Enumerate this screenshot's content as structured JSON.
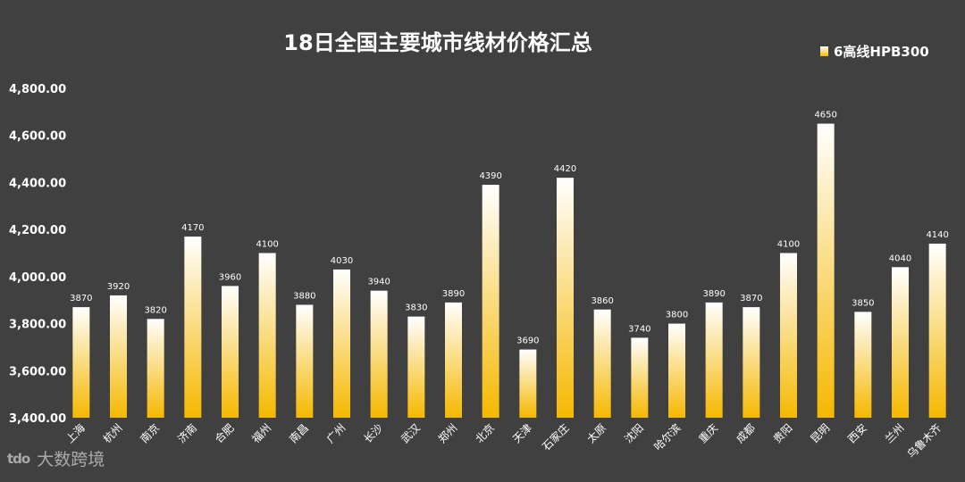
{
  "chart_data": {
    "type": "bar",
    "title": "18日全国主要城市线材价格汇总",
    "categories": [
      "上海",
      "杭州",
      "南京",
      "济南",
      "合肥",
      "福州",
      "南昌",
      "广州",
      "长沙",
      "武汉",
      "郑州",
      "北京",
      "天津",
      "石家庄",
      "太原",
      "沈阳",
      "哈尔滨",
      "重庆",
      "成都",
      "贵阳",
      "昆明",
      "西安",
      "兰州",
      "乌鲁木齐"
    ],
    "series": [
      {
        "name": "6高线HPB300",
        "values": [
          3870,
          3920,
          3820,
          4170,
          3960,
          4100,
          3880,
          4030,
          3940,
          3830,
          3890,
          4390,
          3690,
          4420,
          3860,
          3740,
          3800,
          3890,
          3870,
          4100,
          4650,
          3850,
          4040,
          4140
        ]
      }
    ],
    "ylim": [
      3400,
      4800
    ],
    "yticks": [
      "3,400.00",
      "3,600.00",
      "3,800.00",
      "4,000.00",
      "4,200.00",
      "4,400.00",
      "4,600.00",
      "4,800.00"
    ],
    "ytick_values": [
      3400,
      3600,
      3800,
      4000,
      4200,
      4400,
      4600,
      4800
    ],
    "grid": false,
    "legend": "top-right",
    "colors": {
      "background": "#404040",
      "bar_top": "#ffffff",
      "bar_bottom": "#f5b800",
      "text": "#ffffff"
    }
  },
  "watermark": {
    "logo": "tdo",
    "text": "大数跨境"
  }
}
